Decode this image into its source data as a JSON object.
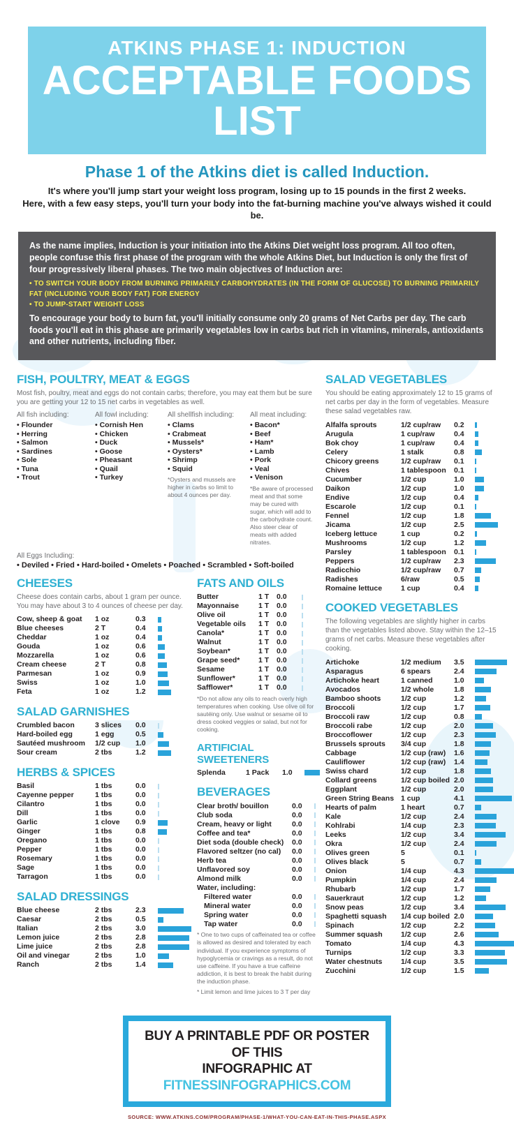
{
  "header": {
    "line1": "ATKINS PHASE 1: INDUCTION",
    "line2": "ACCEPTABLE FOODS LIST"
  },
  "intro": {
    "headline": "Phase 1 of the Atkins diet is called Induction.",
    "line1": "It's where you'll jump start your weight loss program, losing up to 15 pounds in the first 2 weeks.",
    "line2": "Here, with a few easy steps, you'll turn your body into the fat-burning machine you've always wished it could be."
  },
  "notice": {
    "p1": "As the name implies, Induction is your initiation into the Atkins Diet weight loss program. All too often, people confuse this first phase of the program with the whole Atkins Diet, but Induction is only the first of four progressively liberal phases. The two main objectives of Induction are:",
    "bullets": [
      "TO SWITCH YOUR BODY FROM BURNING PRIMARILY CARBOHYDRATES (IN THE FORM OF GLUCOSE) TO BURNING PRIMARILY FAT (INCLUDING YOUR BODY FAT) FOR ENERGY",
      "TO JUMP-START WEIGHT LOSS"
    ],
    "p2": "To encourage your body to burn fat, you'll initially consume only 20 grams of Net Carbs per day. The carb foods you'll eat in this phase are primarily vegetables low in carbs but rich in vitamins, minerals, antioxidants and other nutrients, including fiber."
  },
  "colors": {
    "banner_bg": "#7ed2ea",
    "accent_teal": "#2fb0d2",
    "bar_blue": "#2aa3da",
    "notice_bg": "#58585b",
    "notice_yellow": "#f7ec4e",
    "footer_border": "#2aa9dc",
    "footer_link": "#45c3e2",
    "source_red": "#8b2f2f"
  },
  "sections": {
    "fish": {
      "title": "FISH, POULTRY, MEAT & EGGS",
      "desc": "Most fish, poultry, meat and eggs do not contain carbs; therefore, you may eat them but be sure you are getting your 12 to 15 net carbs in vegetables as well.",
      "fish_label": "All fish including:",
      "fish_items": [
        "Flounder",
        "Herring",
        "Salmon",
        "Sardines",
        "Sole",
        "Tuna",
        "Trout"
      ],
      "fowl_label": "All fowl including:",
      "fowl_items": [
        "Cornish Hen",
        "Chicken",
        "Duck",
        "Goose",
        "Pheasant",
        "Quail",
        "Turkey"
      ],
      "shellfish_label": "All shellfish including:",
      "shellfish_items": [
        "Clams",
        "Crabmeat",
        "Mussels*",
        "Oysters*",
        "Shrimp",
        "Squid"
      ],
      "shellfish_note": "*Oysters and mussels are higher in carbs so limit to about 4 ounces per day.",
      "meat_label": "All meat including:",
      "meat_items": [
        "Bacon*",
        "Beef",
        "Ham*",
        "Lamb",
        "Pork",
        "Veal",
        "Venison"
      ],
      "meat_note": "*Be aware of processed meat and that some may be cured with sugar, which will add to the carbohydrate count. Also steer clear of meats with added nitrates.",
      "eggs_label": "All Eggs Including:",
      "eggs_items": "• Deviled • Fried • Hard-boiled • Omelets • Poached • Scrambled • Soft-boiled"
    },
    "cheeses": {
      "title": "CHEESES",
      "desc": "Cheese does contain carbs, about 1 gram per ounce. You may have about 3 to 4 ounces of cheese per day.",
      "rows": [
        {
          "name": "Cow, sheep & goat",
          "amount": "1 oz",
          "carbs": "0.3"
        },
        {
          "name": "Blue cheeses",
          "amount": "2 T",
          "carbs": "0.4"
        },
        {
          "name": "Cheddar",
          "amount": "1 oz",
          "carbs": "0.4"
        },
        {
          "name": "Gouda",
          "amount": "1 oz",
          "carbs": "0.6"
        },
        {
          "name": "Mozzarella",
          "amount": "1 oz",
          "carbs": "0.6"
        },
        {
          "name": "Cream cheese",
          "amount": "2 T",
          "carbs": "0.8"
        },
        {
          "name": "Parmesan",
          "amount": "1 oz",
          "carbs": "0.9"
        },
        {
          "name": "Swiss",
          "amount": "1 oz",
          "carbs": "1.0"
        },
        {
          "name": "Feta",
          "amount": "1 oz",
          "carbs": "1.2"
        }
      ]
    },
    "salad_garnishes": {
      "title": "SALAD GARNISHES",
      "rows": [
        {
          "name": "Crumbled bacon",
          "amount": "3 slices",
          "carbs": "0.0"
        },
        {
          "name": "Hard-boiled egg",
          "amount": "1 egg",
          "carbs": "0.5"
        },
        {
          "name": "Sautéed mushroom",
          "amount": "1/2 cup",
          "carbs": "1.0"
        },
        {
          "name": "Sour cream",
          "amount": "2 tbs",
          "carbs": "1.2"
        }
      ]
    },
    "herbs_spices": {
      "title": "HERBS & SPICES",
      "rows": [
        {
          "name": "Basil",
          "amount": "1 tbs",
          "carbs": "0.0"
        },
        {
          "name": "Cayenne pepper",
          "amount": "1 tbs",
          "carbs": "0.0"
        },
        {
          "name": "Cilantro",
          "amount": "1 tbs",
          "carbs": "0.0"
        },
        {
          "name": "Dill",
          "amount": "1 tbs",
          "carbs": "0.0"
        },
        {
          "name": "Garlic",
          "amount": "1 clove",
          "carbs": "0.9"
        },
        {
          "name": "Ginger",
          "amount": "1 tbs",
          "carbs": "0.8"
        },
        {
          "name": "Oregano",
          "amount": "1 tbs",
          "carbs": "0.0"
        },
        {
          "name": "Pepper",
          "amount": "1 tbs",
          "carbs": "0.0"
        },
        {
          "name": "Rosemary",
          "amount": "1 tbs",
          "carbs": "0.0"
        },
        {
          "name": "Sage",
          "amount": "1 tbs",
          "carbs": "0.0"
        },
        {
          "name": "Tarragon",
          "amount": "1 tbs",
          "carbs": "0.0"
        }
      ]
    },
    "salad_dressings": {
      "title": "SALAD DRESSINGS",
      "rows": [
        {
          "name": "Blue cheese",
          "amount": "2 tbs",
          "carbs": "2.3"
        },
        {
          "name": "Caesar",
          "amount": "2 tbs",
          "carbs": "0.5"
        },
        {
          "name": "Italian",
          "amount": "2 tbs",
          "carbs": "3.0"
        },
        {
          "name": "Lemon juice",
          "amount": "2 tbs",
          "carbs": "2.8"
        },
        {
          "name": "Lime juice",
          "amount": "2 tbs",
          "carbs": "2.8"
        },
        {
          "name": "Oil and vinegar",
          "amount": "2 tbs",
          "carbs": "1.0"
        },
        {
          "name": "Ranch",
          "amount": "2 tbs",
          "carbs": "1.4"
        }
      ]
    },
    "fats_oils": {
      "title": "FATS AND OILS",
      "rows": [
        {
          "name": "Butter",
          "amount": "1 T",
          "carbs": "0.0"
        },
        {
          "name": "Mayonnaise",
          "amount": "1 T",
          "carbs": "0.0"
        },
        {
          "name": "Olive oil",
          "amount": "1 T",
          "carbs": "0.0"
        },
        {
          "name": "Vegetable oils",
          "amount": "1 T",
          "carbs": "0.0"
        },
        {
          "name": "Canola*",
          "amount": "1 T",
          "carbs": "0.0"
        },
        {
          "name": "Walnut",
          "amount": "1 T",
          "carbs": "0.0"
        },
        {
          "name": "Soybean*",
          "amount": "1 T",
          "carbs": "0.0"
        },
        {
          "name": "Grape seed*",
          "amount": "1 T",
          "carbs": "0.0"
        },
        {
          "name": "Sesame",
          "amount": "1 T",
          "carbs": "0.0"
        },
        {
          "name": "Sunflower*",
          "amount": "1 T",
          "carbs": "0.0"
        },
        {
          "name": "Safflower*",
          "amount": "1 T",
          "carbs": "0.0"
        }
      ],
      "note": "*Do not allow any oils to reach overly high temperatures when cooking. Use olive oil for sautéing only. Use walnut or sesame oil to dress cooked veggies or salad, but not for cooking."
    },
    "sweeteners": {
      "title": "ARTIFICIAL SWEETENERS",
      "rows": [
        {
          "name": "Splenda",
          "amount": "1 Pack",
          "carbs": "1.0"
        }
      ]
    },
    "beverages": {
      "title": "BEVERAGES",
      "rows": [
        {
          "name": "Clear broth/ bouillon",
          "carbs": "0.0"
        },
        {
          "name": "Club soda",
          "carbs": "0.0"
        },
        {
          "name": "Cream, heavy or light",
          "carbs": "0.0"
        },
        {
          "name": "Coffee and tea*",
          "carbs": "0.0"
        },
        {
          "name": "Diet soda (double check)",
          "carbs": "0.0"
        },
        {
          "name": "Flavored seltzer (no cal)",
          "carbs": "0.0"
        },
        {
          "name": "Herb tea",
          "carbs": "0.0"
        },
        {
          "name": "Unflavored soy",
          "carbs": "0.0"
        },
        {
          "name": "Almond milk",
          "carbs": "0.0"
        },
        {
          "name": "Water, including:",
          "subhead": true
        },
        {
          "name": "Filtered water",
          "carbs": "0.0",
          "indent": true
        },
        {
          "name": "Mineral water",
          "carbs": "0.0",
          "indent": true
        },
        {
          "name": "Spring water",
          "carbs": "0.0",
          "indent": true
        },
        {
          "name": "Tap water",
          "carbs": "0.0",
          "indent": true
        }
      ],
      "notes": [
        "* One to two cups of caffeinated tea or coffee is allowed as desired and tolerated by each individual. If you experience symptoms of hypoglycemia or cravings as a result, do not use caffeine. If you have a true caffeine addiction, it is best to break the habit during the induction phase.",
        "* Limit lemon and lime juices to 3 T per day"
      ]
    },
    "salad_vegetables": {
      "title": "SALAD VEGETABLES",
      "desc": "You should be eating approximately 12 to 15 grams of net carbs per day in the form of vegetables. Measure these salad vegetables raw.",
      "rows": [
        {
          "name": "Alfalfa sprouts",
          "amount": "1/2 cup/raw",
          "carbs": "0.2"
        },
        {
          "name": "Arugula",
          "amount": "1 cup/raw",
          "carbs": "0.4"
        },
        {
          "name": "Bok choy",
          "amount": "1 cup/raw",
          "carbs": "0.4"
        },
        {
          "name": "Celery",
          "amount": "1 stalk",
          "carbs": "0.8"
        },
        {
          "name": "Chicory greens",
          "amount": "1/2 cup/raw",
          "carbs": "0.1"
        },
        {
          "name": "Chives",
          "amount": "1 tablespoon",
          "carbs": "0.1"
        },
        {
          "name": "Cucumber",
          "amount": "1/2 cup",
          "carbs": "1.0"
        },
        {
          "name": "Daikon",
          "amount": "1/2 cup",
          "carbs": "1.0"
        },
        {
          "name": "Endive",
          "amount": "1/2 cup",
          "carbs": "0.4"
        },
        {
          "name": "Escarole",
          "amount": "1/2 cup",
          "carbs": "0.1"
        },
        {
          "name": "Fennel",
          "amount": "1/2 cup",
          "carbs": "1.8"
        },
        {
          "name": "Jicama",
          "amount": "1/2 cup",
          "carbs": "2.5"
        },
        {
          "name": "Iceberg lettuce",
          "amount": "1 cup",
          "carbs": "0.2"
        },
        {
          "name": "Mushrooms",
          "amount": "1/2 cup",
          "carbs": "1.2"
        },
        {
          "name": "Parsley",
          "amount": "1 tablespoon",
          "carbs": "0.1"
        },
        {
          "name": "Peppers",
          "amount": "1/2 cup/raw",
          "carbs": "2.3"
        },
        {
          "name": "Radicchio",
          "amount": "1/2 cup/raw",
          "carbs": "0.7"
        },
        {
          "name": "Radishes",
          "amount": "6/raw",
          "carbs": "0.5"
        },
        {
          "name": "Romaine lettuce",
          "amount": "1 cup",
          "carbs": "0.4"
        }
      ]
    },
    "cooked_vegetables": {
      "title": "COOKED VEGETABLES",
      "desc": "The following vegetables are slightly higher in carbs than the vegetables listed above. Stay within the 12–15 grams of net carbs. Measure these vegetables after cooking.",
      "rows": [
        {
          "name": "Artichoke",
          "amount": "1/2 medium",
          "carbs": "3.5"
        },
        {
          "name": "Asparagus",
          "amount": "6 spears",
          "carbs": "2.4"
        },
        {
          "name": "Artichoke heart",
          "amount": "1 canned",
          "carbs": "1.0"
        },
        {
          "name": "Avocados",
          "amount": "1/2 whole",
          "carbs": "1.8"
        },
        {
          "name": "Bamboo shoots",
          "amount": "1/2 cup",
          "carbs": "1.2"
        },
        {
          "name": "Broccoli",
          "amount": "1/2 cup",
          "carbs": "1.7"
        },
        {
          "name": "Broccoli raw",
          "amount": "1/2 cup",
          "carbs": "0.8"
        },
        {
          "name": "Broccoli rabe",
          "amount": "1/2 cup",
          "carbs": "2.0"
        },
        {
          "name": "Broccoflower",
          "amount": "1/2 cup",
          "carbs": "2.3"
        },
        {
          "name": "Brussels sprouts",
          "amount": "3/4 cup",
          "carbs": "1.8"
        },
        {
          "name": "Cabbage",
          "amount": "1/2 cup (raw)",
          "carbs": "1.6"
        },
        {
          "name": "Cauliflower",
          "amount": "1/2 cup (raw)",
          "carbs": "1.4"
        },
        {
          "name": "Swiss chard",
          "amount": "1/2 cup",
          "carbs": "1.8"
        },
        {
          "name": "Collard greens",
          "amount": "1/2 cup boiled",
          "carbs": "2.0"
        },
        {
          "name": "Eggplant",
          "amount": "1/2 cup",
          "carbs": "2.0"
        },
        {
          "name": "Green String Beans",
          "amount": "1 cup",
          "carbs": "4.1"
        },
        {
          "name": "Hearts of palm",
          "amount": "1 heart",
          "carbs": "0.7"
        },
        {
          "name": "Kale",
          "amount": "1/2 cup",
          "carbs": "2.4"
        },
        {
          "name": "Kohlrabi",
          "amount": "1/4 cup",
          "carbs": "2.3"
        },
        {
          "name": "Leeks",
          "amount": "1/2 cup",
          "carbs": "3.4"
        },
        {
          "name": "Okra",
          "amount": "1/2 cup",
          "carbs": "2.4"
        },
        {
          "name": "Olives green",
          "amount": "5",
          "carbs": "0.1"
        },
        {
          "name": "Olives black",
          "amount": "5",
          "carbs": "0.7"
        },
        {
          "name": "Onion",
          "amount": "1/4 cup",
          "carbs": "4.3"
        },
        {
          "name": "Pumpkin",
          "amount": "1/4 cup",
          "carbs": "2.4"
        },
        {
          "name": "Rhubarb",
          "amount": "1/2 cup",
          "carbs": "1.7"
        },
        {
          "name": "Sauerkraut",
          "amount": "1/2 cup",
          "carbs": "1.2"
        },
        {
          "name": "Snow peas",
          "amount": "1/2 cup",
          "carbs": "3.4"
        },
        {
          "name": "Spaghetti squash",
          "amount": "1/4 cup boiled",
          "carbs": "2.0"
        },
        {
          "name": "Spinach",
          "amount": "1/2 cup",
          "carbs": "2.2"
        },
        {
          "name": "Summer squash",
          "amount": "1/2 cup",
          "carbs": "2.6"
        },
        {
          "name": "Tomato",
          "amount": "1/4 cup",
          "carbs": "4.3"
        },
        {
          "name": "Turnips",
          "amount": "1/2 cup",
          "carbs": "3.3"
        },
        {
          "name": "Water chestnuts",
          "amount": "1/4 cup",
          "carbs": "3.5"
        },
        {
          "name": "Zucchini",
          "amount": "1/2 cup",
          "carbs": "1.5"
        }
      ]
    }
  },
  "footer": {
    "line1": "BUY A PRINTABLE PDF OR POSTER OF THIS",
    "line2_prefix": "INFOGRAPHIC AT ",
    "line2_link": "FITNESSINFOGRAPHICS.COM",
    "source": "SOURCE: WWW.ATKINS.COM/PROGRAM/PHASE-1/WHAT-YOU-CAN-EAT-IN-THIS-PHASE.ASPX"
  }
}
